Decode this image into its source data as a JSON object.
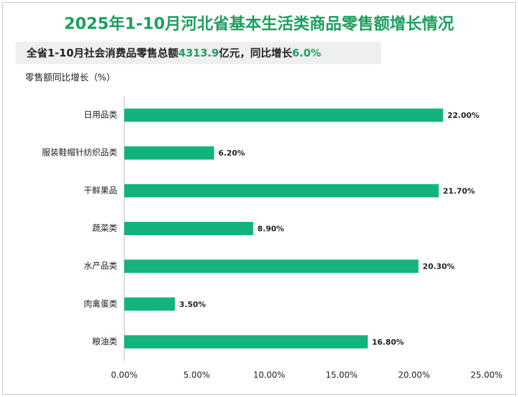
{
  "chart_data": {
    "type": "bar",
    "orientation": "horizontal",
    "title": "2025年1-10月河北省基本生活类商品零售额增长情况",
    "subtitle": [
      "全省1-10月社会消费品零售总额",
      "4313.9",
      "亿元，同比增长",
      "6.0%"
    ],
    "y_label": "零售额同比增长（%）",
    "categories": [
      "日用品类",
      "服装鞋帽针纺织品类",
      "干鲜果品",
      "蔬菜类",
      "水产品类",
      "肉禽蛋类",
      "粮油类"
    ],
    "values": [
      22.0,
      6.2,
      21.7,
      8.9,
      20.3,
      3.5,
      16.8
    ],
    "value_labels": [
      "22.00%",
      "6.20%",
      "21.70%",
      "8.90%",
      "20.30%",
      "3.50%",
      "16.80%"
    ],
    "color": "#13b47c",
    "xlim": [
      0,
      25
    ],
    "xticks": [
      {
        "value": 0,
        "label": "0.00%"
      },
      {
        "value": 5,
        "label": "5.00%"
      },
      {
        "value": 10,
        "label": "10.00%"
      },
      {
        "value": 15,
        "label": "15.00%"
      },
      {
        "value": 20,
        "label": "20.00%"
      },
      {
        "value": 25,
        "label": "25.00%"
      }
    ],
    "grid": false
  }
}
